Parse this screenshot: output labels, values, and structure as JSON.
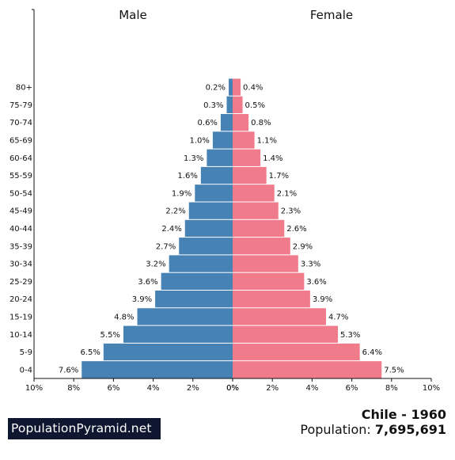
{
  "chart_data": {
    "type": "bar",
    "orientation": "horizontal-population-pyramid",
    "categories": [
      "0-4",
      "5-9",
      "10-14",
      "15-19",
      "20-24",
      "25-29",
      "30-34",
      "35-39",
      "40-44",
      "45-49",
      "50-54",
      "55-59",
      "60-64",
      "65-69",
      "70-74",
      "75-79",
      "80+"
    ],
    "series": [
      {
        "name": "Male",
        "color": "#4682b4",
        "values": [
          7.6,
          6.5,
          5.5,
          4.8,
          3.9,
          3.6,
          3.2,
          2.7,
          2.4,
          2.2,
          1.9,
          1.6,
          1.3,
          1.0,
          0.6,
          0.3,
          0.2
        ],
        "labels": [
          "7.6%",
          "6.5%",
          "5.5%",
          "4.8%",
          "3.9%",
          "3.6%",
          "3.2%",
          "2.7%",
          "2.4%",
          "2.2%",
          "1.9%",
          "1.6%",
          "1.3%",
          "1.0%",
          "0.6%",
          "0.3%",
          "0.2%"
        ]
      },
      {
        "name": "Female",
        "color": "#f07b8a",
        "values": [
          7.5,
          6.4,
          5.3,
          4.7,
          3.9,
          3.6,
          3.3,
          2.9,
          2.6,
          2.3,
          2.1,
          1.7,
          1.4,
          1.1,
          0.8,
          0.5,
          0.4
        ],
        "labels": [
          "7.5%",
          "6.4%",
          "5.3%",
          "4.7%",
          "3.9%",
          "3.6%",
          "3.3%",
          "2.9%",
          "2.6%",
          "2.3%",
          "2.1%",
          "1.7%",
          "1.4%",
          "1.1%",
          "0.8%",
          "0.5%",
          "0.4%"
        ]
      }
    ],
    "xlim": [
      0,
      10
    ],
    "x_ticks_left": [
      "10%",
      "8%",
      "6%",
      "4%",
      "2%",
      "0%"
    ],
    "x_ticks_right": [
      "0%",
      "2%",
      "4%",
      "6%",
      "8%",
      "10%"
    ],
    "grid": false
  },
  "footer": {
    "brand": "PopulationPyramid.net",
    "country_year": "Chile - 1960",
    "population_label": "Population:",
    "population_value": "7,695,691"
  }
}
